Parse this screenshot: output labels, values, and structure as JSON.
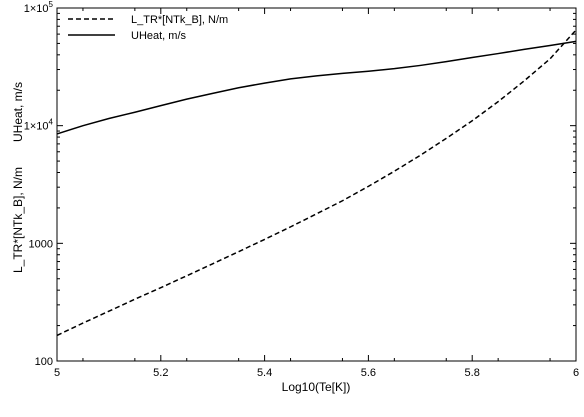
{
  "chart_data": {
    "type": "line",
    "xlabel": "Log10(Te[K])",
    "ylabel": [
      "L_TR*[NTk_B], N/m",
      "UHeat, m/s"
    ],
    "xlim": [
      5,
      6
    ],
    "ylim": [
      100,
      100000
    ],
    "yscale": "log",
    "x_ticks": [
      "5",
      "5.2",
      "5.4",
      "5.6",
      "5.8",
      "6"
    ],
    "y_ticks": [
      {
        "value": 100,
        "base": "100",
        "exp": ""
      },
      {
        "value": 1000,
        "base": "1000",
        "exp": ""
      },
      {
        "value": 10000,
        "base": "1×10",
        "exp": "4"
      },
      {
        "value": 100000,
        "base": "1×10",
        "exp": "5"
      }
    ],
    "legend_position": "top-left",
    "grid": false,
    "series": [
      {
        "name": "L_TR*[NTk_B], N/m",
        "style": "dashed",
        "color": "#000000",
        "x": [
          5.0,
          5.05,
          5.1,
          5.15,
          5.2,
          5.25,
          5.3,
          5.35,
          5.4,
          5.45,
          5.5,
          5.55,
          5.6,
          5.65,
          5.7,
          5.75,
          5.8,
          5.85,
          5.9,
          5.95,
          6.0
        ],
        "y": [
          165,
          210,
          265,
          335,
          420,
          530,
          670,
          850,
          1080,
          1380,
          1780,
          2300,
          3050,
          4100,
          5600,
          7800,
          11000,
          16000,
          24000,
          37000,
          65000
        ]
      },
      {
        "name": "UHeat, m/s",
        "style": "solid",
        "color": "#000000",
        "x": [
          5.0,
          5.05,
          5.1,
          5.15,
          5.2,
          5.25,
          5.3,
          5.35,
          5.4,
          5.45,
          5.5,
          5.55,
          5.6,
          5.65,
          5.7,
          5.75,
          5.8,
          5.85,
          5.9,
          5.95,
          6.0
        ],
        "y": [
          8500,
          10000,
          11500,
          13000,
          14800,
          16800,
          18800,
          21000,
          23000,
          25000,
          26500,
          27800,
          29000,
          30500,
          32500,
          35000,
          38000,
          41000,
          44500,
          48000,
          52000
        ]
      }
    ]
  }
}
